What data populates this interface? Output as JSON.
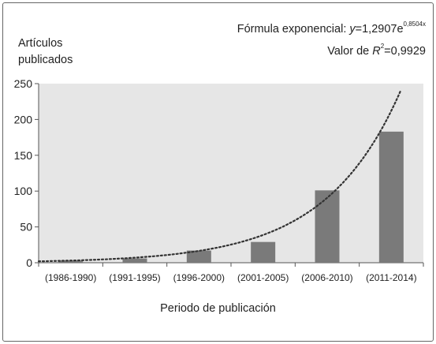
{
  "chart_data": {
    "type": "bar",
    "categories": [
      "(1986-1990)",
      "(1991-1995)",
      "(1996-2000)",
      "(2001-2005)",
      "(2006-2010)",
      "(2011-2014)"
    ],
    "values": [
      3,
      6,
      17,
      29,
      101,
      183
    ],
    "ylim": [
      0,
      250
    ],
    "yticks": [
      0,
      50,
      100,
      150,
      200,
      250
    ],
    "ylabel_line1": "Artículos",
    "ylabel_line2": "publicados",
    "xlabel": "Periodo de publicación",
    "grid": false,
    "plot_background": "#e6e6e6",
    "bar_color": "#7a7a7a",
    "trendline": {
      "type": "exponential",
      "a": 1.2907,
      "b": 0.8504,
      "style": "dotted",
      "color": "#333333"
    },
    "annotation": {
      "formula_prefix": "Fórmula exponencial: ",
      "formula_var": "y",
      "formula_eq": "=1,2907e",
      "formula_exp": "0,8504x",
      "r2_prefix": "Valor de ",
      "r2_var": "R",
      "r2_sup": "2",
      "r2_value": "=0,9929"
    }
  }
}
